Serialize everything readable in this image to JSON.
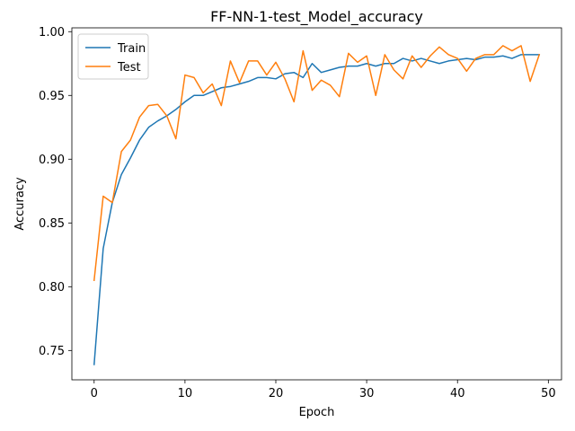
{
  "chart_data": {
    "type": "line",
    "title": "FF-NN-1-test_Model_accuracy",
    "xlabel": "Epoch",
    "ylabel": "Accuracy",
    "xlim": [
      -2.45,
      51.45
    ],
    "ylim": [
      0.727,
      1.003
    ],
    "xticks": [
      0,
      10,
      20,
      30,
      40,
      50
    ],
    "yticks": [
      0.75,
      0.8,
      0.85,
      0.9,
      0.95,
      1.0
    ],
    "xtick_labels": [
      "0",
      "10",
      "20",
      "30",
      "40",
      "50"
    ],
    "ytick_labels": [
      "0.75",
      "0.80",
      "0.85",
      "0.90",
      "0.95",
      "1.00"
    ],
    "legend_position": "upper-left",
    "grid": false,
    "x": [
      0,
      1,
      2,
      3,
      4,
      5,
      6,
      7,
      8,
      9,
      10,
      11,
      12,
      13,
      14,
      15,
      16,
      17,
      18,
      19,
      20,
      21,
      22,
      23,
      24,
      25,
      26,
      27,
      28,
      29,
      30,
      31,
      32,
      33,
      34,
      35,
      36,
      37,
      38,
      39,
      40,
      41,
      42,
      43,
      44,
      45,
      46,
      47,
      48,
      49
    ],
    "series": [
      {
        "name": "Train",
        "color": "#1f77b4",
        "values": [
          0.739,
          0.83,
          0.866,
          0.888,
          0.901,
          0.915,
          0.925,
          0.93,
          0.934,
          0.939,
          0.945,
          0.95,
          0.95,
          0.953,
          0.956,
          0.957,
          0.959,
          0.961,
          0.964,
          0.964,
          0.963,
          0.967,
          0.968,
          0.964,
          0.975,
          0.968,
          0.97,
          0.972,
          0.973,
          0.973,
          0.975,
          0.973,
          0.975,
          0.975,
          0.979,
          0.977,
          0.979,
          0.977,
          0.975,
          0.977,
          0.978,
          0.979,
          0.978,
          0.98,
          0.98,
          0.981,
          0.979,
          0.982,
          0.982,
          0.982
        ]
      },
      {
        "name": "Test",
        "color": "#ff7f0e",
        "values": [
          0.805,
          0.871,
          0.866,
          0.906,
          0.915,
          0.933,
          0.942,
          0.943,
          0.934,
          0.916,
          0.966,
          0.964,
          0.952,
          0.959,
          0.942,
          0.977,
          0.96,
          0.977,
          0.977,
          0.966,
          0.976,
          0.963,
          0.945,
          0.985,
          0.954,
          0.962,
          0.958,
          0.949,
          0.983,
          0.976,
          0.981,
          0.95,
          0.982,
          0.97,
          0.963,
          0.981,
          0.972,
          0.981,
          0.988,
          0.982,
          0.979,
          0.969,
          0.979,
          0.982,
          0.982,
          0.989,
          0.985,
          0.989,
          0.961,
          0.982
        ]
      }
    ]
  }
}
